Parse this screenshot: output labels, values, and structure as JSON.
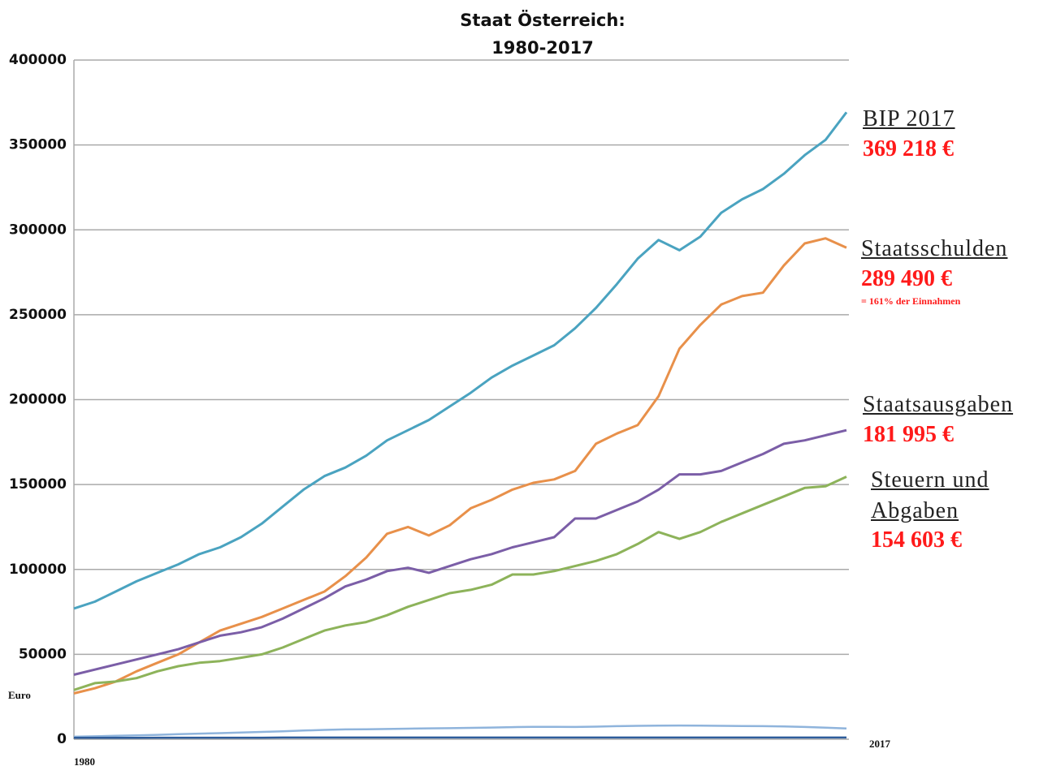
{
  "chart_data": {
    "type": "line",
    "title": "Staat Österreich:",
    "subtitle": "1980-2017",
    "y_label": "Euro",
    "x": [
      1980,
      1981,
      1982,
      1983,
      1984,
      1985,
      1986,
      1987,
      1988,
      1989,
      1990,
      1991,
      1992,
      1993,
      1994,
      1995,
      1996,
      1997,
      1998,
      1999,
      2000,
      2001,
      2002,
      2003,
      2004,
      2005,
      2006,
      2007,
      2008,
      2009,
      2010,
      2011,
      2012,
      2013,
      2014,
      2015,
      2016,
      2017
    ],
    "xlim": [
      1980,
      2017
    ],
    "xticks": [
      1980,
      2017
    ],
    "ylim": [
      0,
      400000
    ],
    "yticks": [
      0,
      50000,
      100000,
      150000,
      200000,
      250000,
      300000,
      350000,
      400000
    ],
    "grid": true,
    "series": [
      {
        "name": "BIP 2017",
        "color": "#4aa3c0",
        "values": [
          77000,
          81000,
          87000,
          93000,
          98000,
          103000,
          109000,
          113000,
          119000,
          127000,
          137000,
          147000,
          155000,
          160000,
          167000,
          176000,
          182000,
          188000,
          196000,
          204000,
          213000,
          220000,
          226000,
          232000,
          242000,
          254000,
          268000,
          283000,
          294000,
          288000,
          296000,
          310000,
          318000,
          324000,
          333000,
          344000,
          353000,
          369218
        ],
        "value_labels": [
          null,
          null,
          null,
          null,
          null,
          null,
          null,
          null,
          null,
          null,
          null,
          null,
          null,
          null,
          null,
          null,
          null,
          null,
          null,
          null,
          null,
          null,
          null,
          null,
          null,
          null,
          null,
          null,
          null,
          null,
          null,
          null,
          null,
          null,
          null,
          null,
          null,
          "369 218 €"
        ]
      },
      {
        "name": "Staatsschulden",
        "color": "#e8904a",
        "values": [
          27000,
          30000,
          34000,
          40000,
          45000,
          50000,
          57000,
          64000,
          68000,
          72000,
          77000,
          82000,
          87000,
          96000,
          107000,
          121000,
          125000,
          120000,
          126000,
          136000,
          141000,
          147000,
          151000,
          153000,
          158000,
          174000,
          180000,
          185000,
          202000,
          230000,
          244000,
          256000,
          261000,
          263000,
          279000,
          292000,
          295000,
          289490
        ],
        "value_labels": [
          null,
          null,
          null,
          null,
          null,
          null,
          null,
          null,
          null,
          null,
          null,
          null,
          null,
          null,
          null,
          null,
          null,
          null,
          null,
          null,
          null,
          null,
          null,
          null,
          null,
          null,
          null,
          null,
          null,
          null,
          null,
          null,
          null,
          null,
          null,
          null,
          null,
          "289 490 €"
        ]
      },
      {
        "name": "Staatsausgaben",
        "color": "#7b5ea7",
        "values": [
          38000,
          41000,
          44000,
          47000,
          50000,
          53000,
          57000,
          61000,
          63000,
          66000,
          71000,
          77000,
          83000,
          90000,
          94000,
          99000,
          101000,
          98000,
          102000,
          106000,
          109000,
          113000,
          116000,
          119000,
          130000,
          130000,
          135000,
          140000,
          147000,
          156000,
          156000,
          158000,
          163000,
          168000,
          174000,
          176000,
          179000,
          181995
        ],
        "value_labels": [
          null,
          null,
          null,
          null,
          null,
          null,
          null,
          null,
          null,
          null,
          null,
          null,
          null,
          null,
          null,
          null,
          null,
          null,
          null,
          null,
          null,
          null,
          null,
          null,
          null,
          null,
          null,
          null,
          null,
          null,
          null,
          null,
          null,
          null,
          null,
          null,
          null,
          "181 995 €"
        ]
      },
      {
        "name": "Steuern und Abgaben",
        "color": "#8db35a",
        "values": [
          29000,
          33000,
          34000,
          36000,
          40000,
          43000,
          45000,
          46000,
          48000,
          50000,
          54000,
          59000,
          64000,
          67000,
          69000,
          73000,
          78000,
          82000,
          86000,
          88000,
          91000,
          97000,
          97000,
          99000,
          102000,
          105000,
          109000,
          115000,
          122000,
          118000,
          122000,
          128000,
          133000,
          138000,
          143000,
          148000,
          149000,
          154603
        ],
        "value_labels": [
          null,
          null,
          null,
          null,
          null,
          null,
          null,
          null,
          null,
          null,
          null,
          null,
          null,
          null,
          null,
          null,
          null,
          null,
          null,
          null,
          null,
          null,
          null,
          null,
          null,
          null,
          null,
          null,
          null,
          null,
          null,
          null,
          null,
          null,
          null,
          null,
          null,
          "154 603 €"
        ]
      },
      {
        "color": "#8fb4dc",
        "values": [
          1500,
          1700,
          2000,
          2300,
          2600,
          3000,
          3300,
          3600,
          3900,
          4300,
          4700,
          5100,
          5500,
          5800,
          5900,
          6000,
          6200,
          6400,
          6500,
          6700,
          6900,
          7100,
          7300,
          7300,
          7200,
          7400,
          7700,
          7900,
          8000,
          8100,
          8000,
          7900,
          7800,
          7700,
          7500,
          7200,
          6800,
          6300
        ]
      },
      {
        "color": "#2e5c9a",
        "values": [
          800,
          800,
          800,
          800,
          900,
          900,
          900,
          900,
          900,
          900,
          1000,
          1000,
          1000,
          1000,
          1000,
          1000,
          1000,
          1000,
          1000,
          1000,
          1000,
          1000,
          1000,
          1000,
          1000,
          1000,
          1000,
          1000,
          1000,
          1000,
          1000,
          1000,
          1000,
          1000,
          1000,
          1000,
          1000,
          1000
        ]
      }
    ],
    "annotations": [
      "= 161% der Einnahmen"
    ]
  }
}
